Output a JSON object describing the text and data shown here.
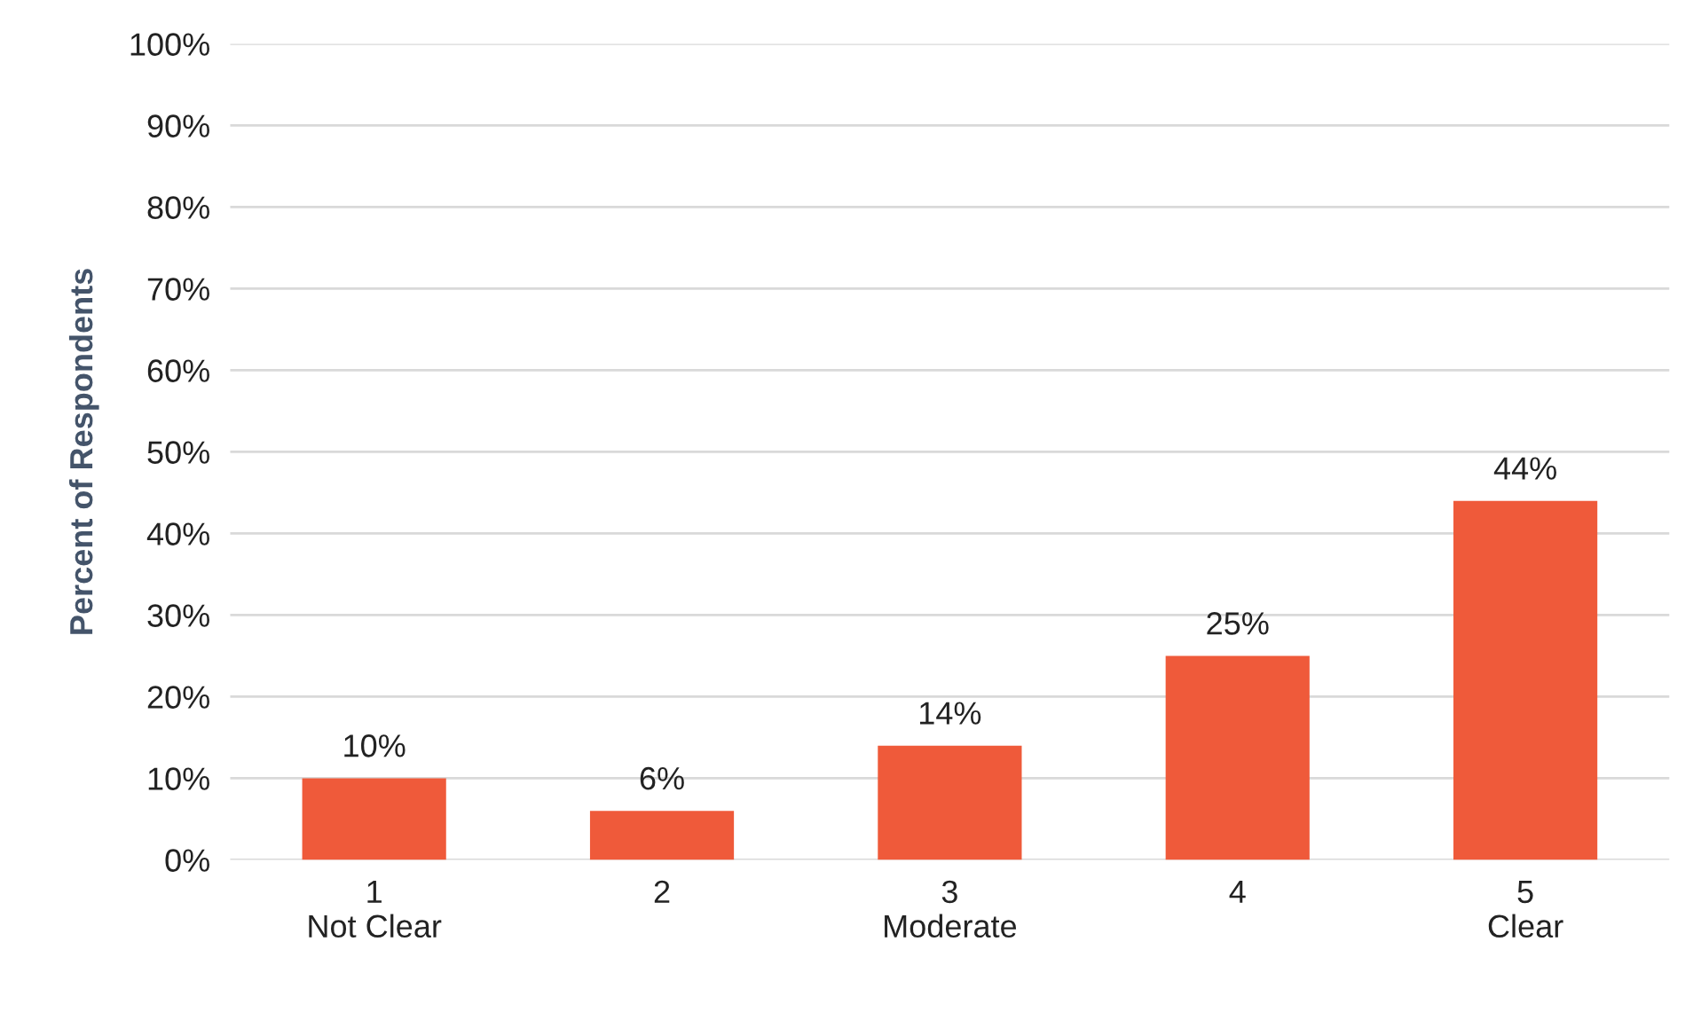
{
  "chart_data": {
    "type": "bar",
    "ylabel": "Percent of Respondents",
    "categories": [
      "1\nNot Clear",
      "2",
      "3\nModerate",
      "4",
      "5\nClear"
    ],
    "values": [
      10,
      6,
      14,
      25,
      44
    ],
    "value_labels": [
      "10%",
      "6%",
      "14%",
      "25%",
      "44%"
    ],
    "color": "#ef5a3a",
    "ylim": [
      0,
      100
    ],
    "yticks": [
      {
        "value": 0,
        "label": "0%"
      },
      {
        "value": 10,
        "label": "10%"
      },
      {
        "value": 20,
        "label": "20%"
      },
      {
        "value": 30,
        "label": "30%"
      },
      {
        "value": 40,
        "label": "40%"
      },
      {
        "value": 50,
        "label": "50%"
      },
      {
        "value": 60,
        "label": "60%"
      },
      {
        "value": 70,
        "label": "70%"
      },
      {
        "value": 80,
        "label": "80%"
      },
      {
        "value": 90,
        "label": "90%"
      },
      {
        "value": 100,
        "label": "100%"
      }
    ],
    "grid": "y",
    "legend": false
  }
}
